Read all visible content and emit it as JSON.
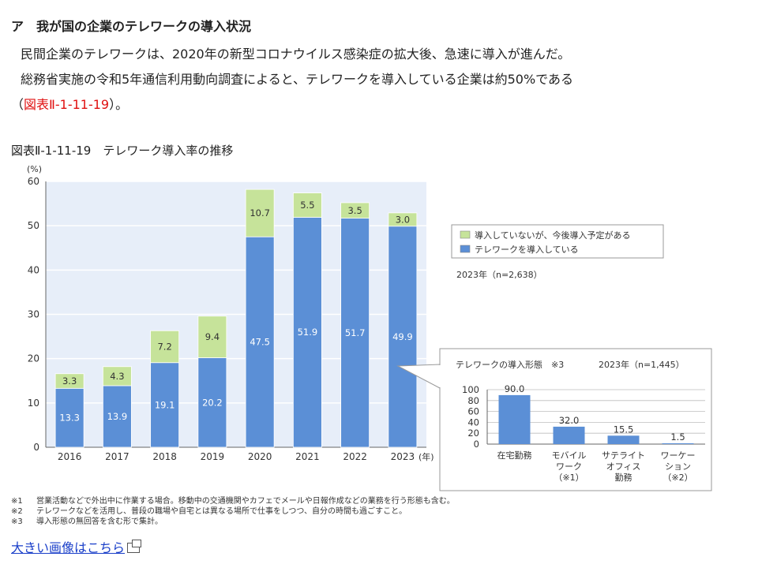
{
  "text": {
    "heading": "ア　我が国の企業のテレワークの導入状況",
    "para1": "民間企業のテレワークは、2020年の新型コロナウイルス感染症の拡大後、急速に導入が進んだ。",
    "para2": "総務省実施の令和5年通信利用動向調査によると、テレワークを導入している企業は約50%である",
    "para3_open": "（",
    "para3_ref": "図表Ⅱ-1-11-19",
    "para3_close": "）。",
    "figure_title": "図表Ⅱ-1-11-19　テレワーク導入率の推移",
    "link": "大きい画像はこちら"
  },
  "notes": [
    {
      "mark": "※1",
      "text": "営業活動などで外出中に作業する場合。移動中の交通機関やカフェでメールや日報作成などの業務を行う形態も含む。"
    },
    {
      "mark": "※2",
      "text": "テレワークなどを活用し、普段の職場や自宅とは異なる場所で仕事をしつつ、自分の時間も過ごすこと。"
    },
    {
      "mark": "※3",
      "text": "導入形態の無回答を含む形で集計。"
    }
  ],
  "colors": {
    "introduced": "#5b8fd6",
    "planned": "#c6e39a",
    "plot_bg": "#e7eef9",
    "ref_red": "#e01010",
    "link_blue": "#1a3fc9"
  },
  "chart_data": [
    {
      "type": "bar",
      "stacked": true,
      "categories": [
        "2016",
        "2017",
        "2018",
        "2019",
        "2020",
        "2021",
        "2022",
        "2023"
      ],
      "x_unit": "(年)",
      "y_unit": "(%)",
      "ylim": [
        0,
        60
      ],
      "yticks": [
        0,
        10,
        20,
        30,
        40,
        50,
        60
      ],
      "series": [
        {
          "name": "テレワークを導入している",
          "color": "#5b8fd6",
          "values": [
            13.3,
            13.9,
            19.1,
            20.2,
            47.5,
            51.9,
            51.7,
            49.9
          ]
        },
        {
          "name": "導入していないが、今後導入予定がある",
          "color": "#c6e39a",
          "values": [
            3.3,
            4.3,
            7.2,
            9.4,
            10.7,
            5.5,
            3.5,
            3.0
          ]
        }
      ],
      "legend_position": "right",
      "sample_note": "2023年（n=2,638）"
    },
    {
      "type": "bar",
      "title": "テレワークの導入形態　※3",
      "sample_note": "2023年（n=1,445）",
      "categories": [
        "在宅勤務",
        "モバイルワーク（※1）",
        "サテライトオフィス勤務",
        "ワーケーション（※2）"
      ],
      "category_lines": [
        [
          "在宅勤務"
        ],
        [
          "モバイル",
          "ワーク",
          "（※1）"
        ],
        [
          "サテライト",
          "オフィス",
          "勤務"
        ],
        [
          "ワーケー",
          "ション",
          "（※2）"
        ]
      ],
      "values": [
        90.0,
        32.0,
        15.5,
        1.5
      ],
      "ylim": [
        0,
        100
      ],
      "yticks": [
        0,
        20,
        40,
        60,
        80,
        100
      ]
    }
  ]
}
